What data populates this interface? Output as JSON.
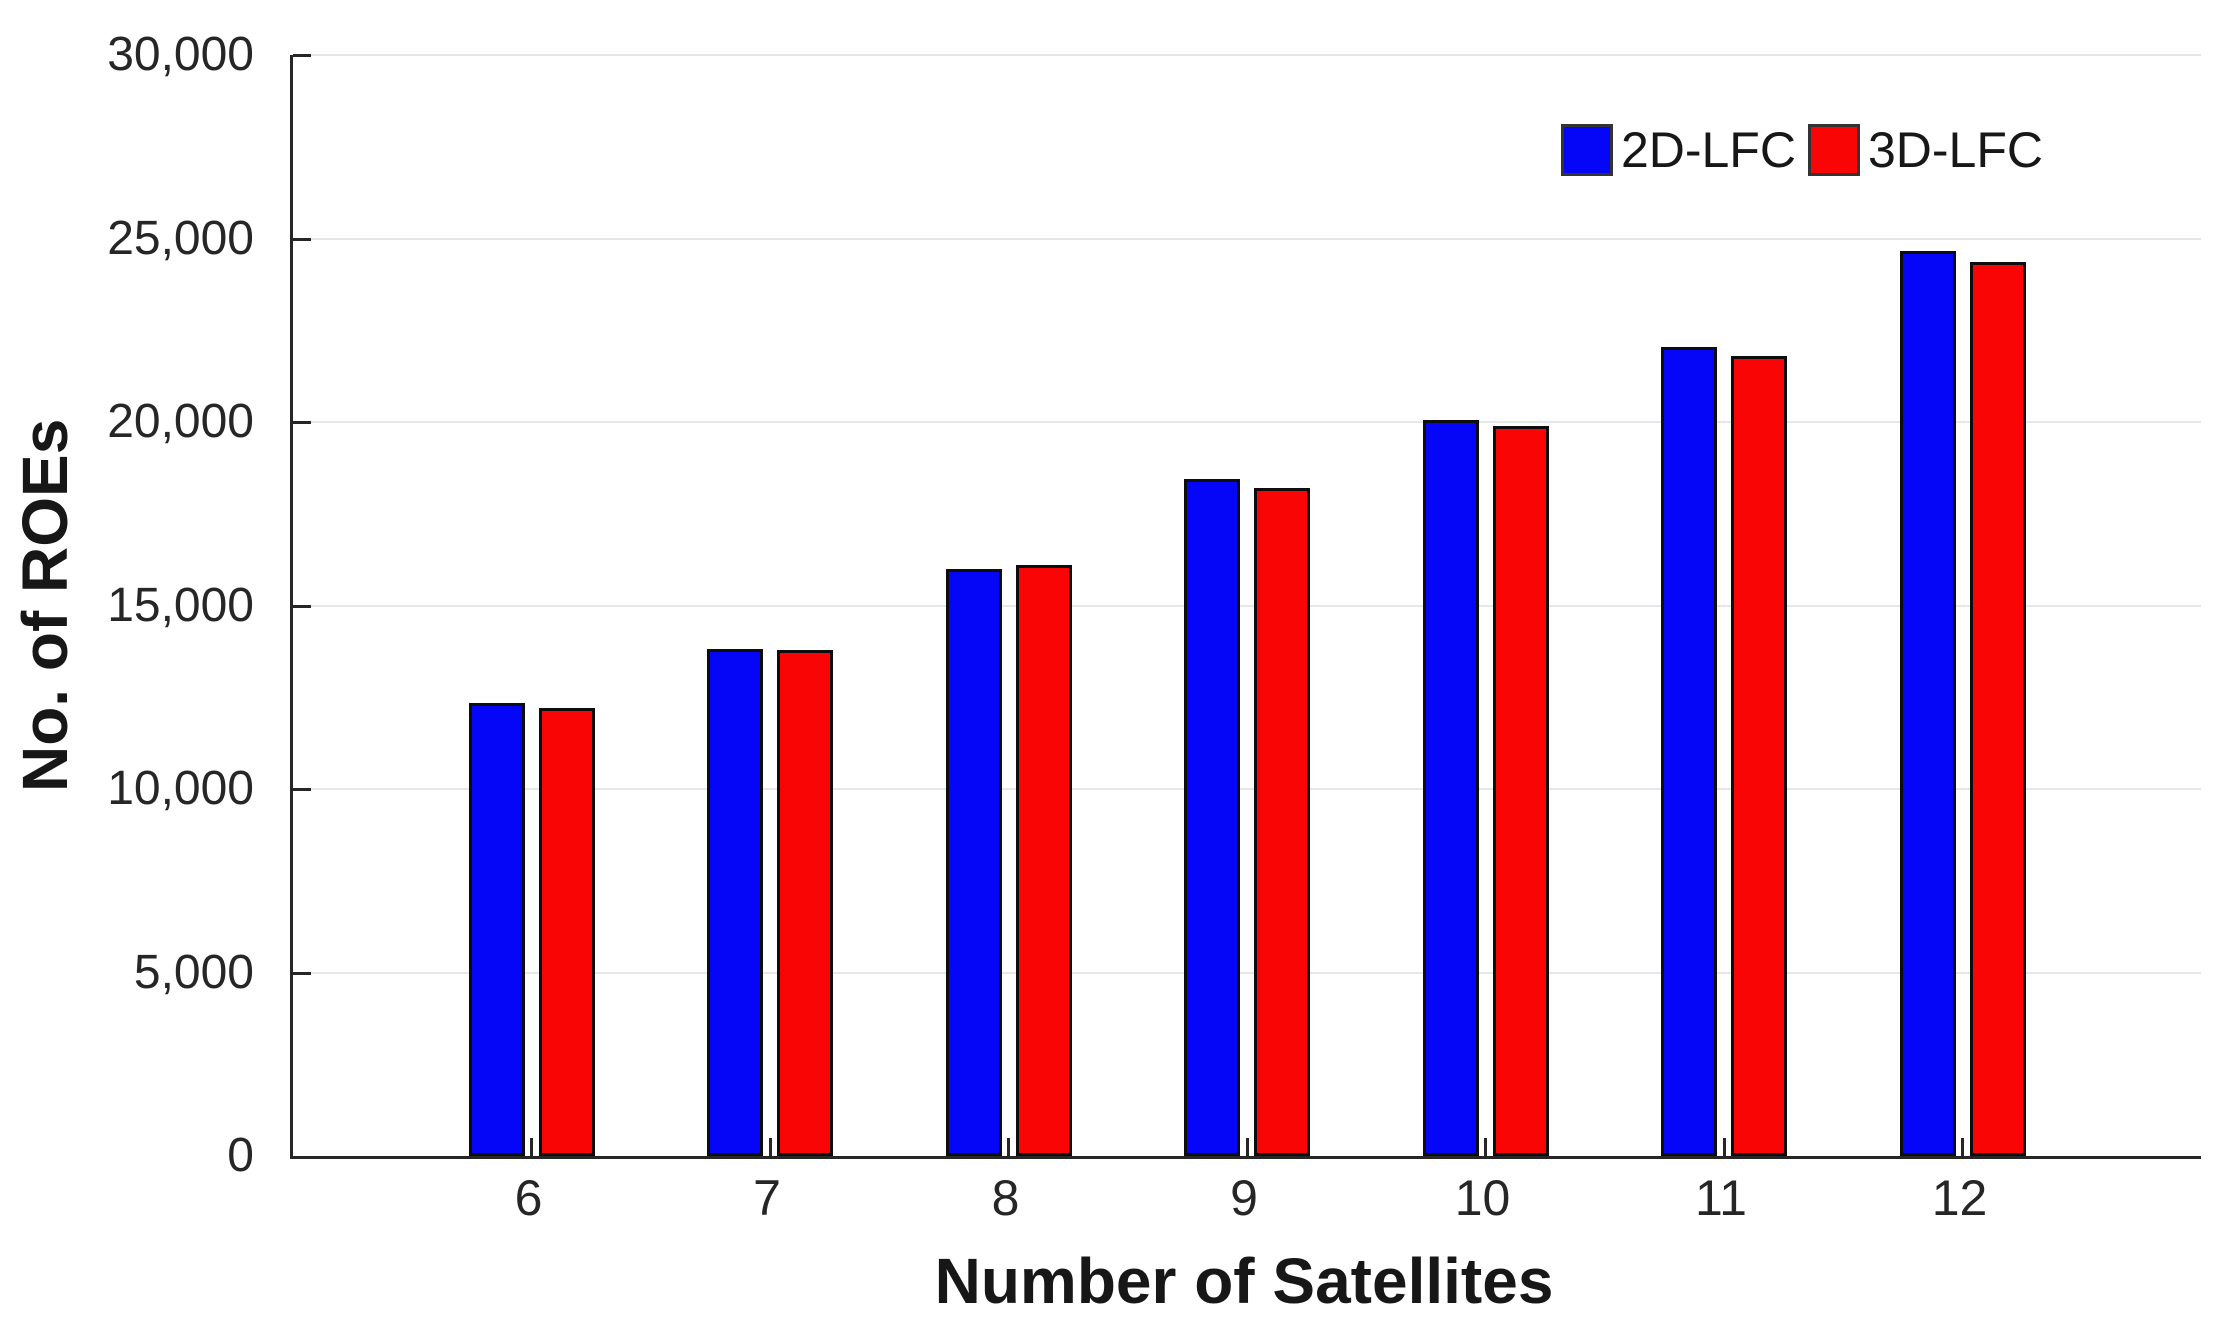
{
  "figure": {
    "background_color": "#ffffff",
    "axis_color": "#262626",
    "grid_color": "#e7e7e7",
    "bar_edge_color": "#0d0d0d"
  },
  "chart_data": {
    "type": "bar",
    "title": "",
    "xlabel": "Number of Satellites",
    "ylabel": "No. of ROEs",
    "categories": [
      "6",
      "7",
      "8",
      "9",
      "10",
      "11",
      "12"
    ],
    "series": [
      {
        "name": "2D-LFC",
        "color": "#0505f7",
        "values": [
          12350,
          13820,
          16000,
          18450,
          20050,
          22050,
          24650
        ]
      },
      {
        "name": "3D-LFC",
        "color": "#fa0505",
        "values": [
          12200,
          13790,
          16100,
          18200,
          19900,
          21800,
          24350
        ]
      }
    ],
    "ylim": [
      0,
      30000
    ],
    "ytick_step": 5000,
    "ytick_labels": [
      "0",
      "5,000",
      "10,000",
      "15,000",
      "20,000",
      "25,000",
      "30,000"
    ],
    "grid": "horizontal-gridlines-on",
    "legend_position": "top-right-inside"
  }
}
